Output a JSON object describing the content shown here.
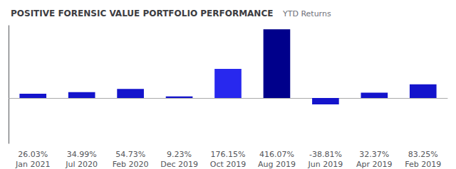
{
  "chart_data": {
    "type": "bar",
    "title": "POSITIVE FORENSIC VALUE PORTFOLIO PERFORMANCE",
    "subtitle": "YTD Returns",
    "categories": [
      "Jan 2021",
      "Jul 2020",
      "Feb 2020",
      "Dec 2019",
      "Oct 2019",
      "Aug 2019",
      "Jun 2019",
      "Apr 2019",
      "Feb 2019"
    ],
    "values": [
      26.03,
      34.99,
      54.73,
      9.23,
      176.15,
      416.07,
      -38.81,
      32.37,
      83.25
    ],
    "value_labels": [
      "26.03%",
      "34.99%",
      "54.73%",
      "9.23%",
      "176.15%",
      "416.07%",
      "-38.81%",
      "32.37%",
      "83.25%"
    ],
    "colors": [
      "#1414cc",
      "#1414cc",
      "#1414cc",
      "#1414cc",
      "#2828ee",
      "#00008b",
      "#1414cc",
      "#1414cc",
      "#1414cc"
    ],
    "ylim": [
      -275.3476,
      438.814
    ],
    "yticks": [],
    "tick_labels": "x",
    "grid": false,
    "data_labels": true
  }
}
